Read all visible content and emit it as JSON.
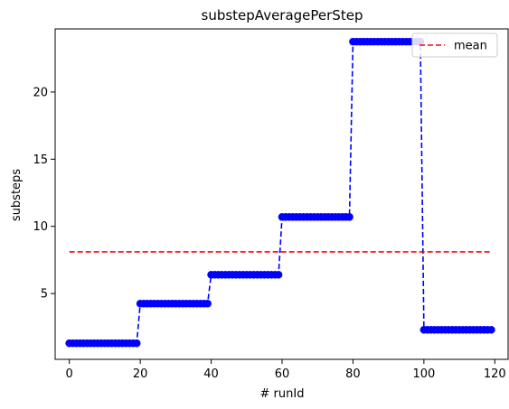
{
  "chart_data": {
    "type": "line",
    "title": "substepAveragePerStep",
    "xlabel": "# runId",
    "ylabel": "substeps",
    "xlim": [
      -4,
      124
    ],
    "ylim": [
      0.1,
      24.7
    ],
    "xticks": [
      0,
      20,
      40,
      60,
      80,
      100,
      120
    ],
    "yticks": [
      5,
      10,
      15,
      20
    ],
    "grid": false,
    "legend_position": "top-right",
    "series": [
      {
        "name": "",
        "style": "dashed-line-with-circle-markers",
        "color": "#0000ff",
        "segments": [
          {
            "x_start": 0,
            "x_end": 19,
            "y": 1.3
          },
          {
            "x_start": 20,
            "x_end": 39,
            "y": 4.25
          },
          {
            "x_start": 40,
            "x_end": 59,
            "y": 6.4
          },
          {
            "x_start": 60,
            "x_end": 79,
            "y": 10.7
          },
          {
            "x_start": 80,
            "x_end": 99,
            "y": 23.75
          },
          {
            "x_start": 100,
            "x_end": 119,
            "y": 2.3
          }
        ]
      },
      {
        "name": "mean",
        "style": "dashed-line",
        "color": "#ff0000",
        "x": [
          0,
          119
        ],
        "y": [
          8.1,
          8.1
        ]
      }
    ]
  }
}
